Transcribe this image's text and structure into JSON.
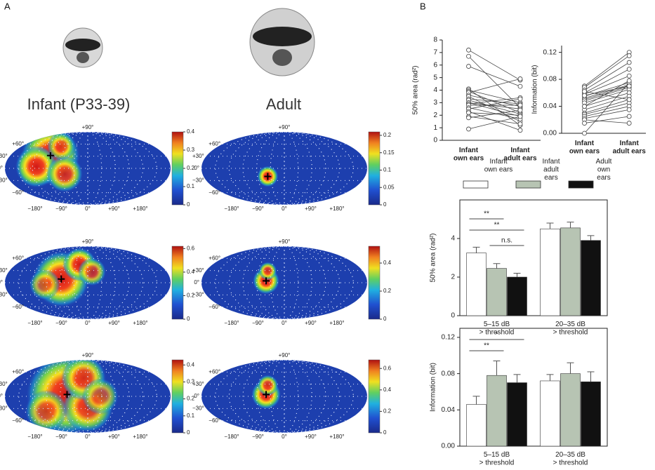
{
  "panel_labels": [
    "A",
    "B"
  ],
  "panel_a": {
    "columns": [
      "Infant (P33-39)",
      "Adult"
    ],
    "lat_labels": [
      "+90°",
      "+60°",
      "+30°",
      "0°",
      "−30°",
      "−60°"
    ],
    "lon_labels": [
      "−180°",
      "−90°",
      "0°",
      "+90°",
      "+180°"
    ],
    "colorbars": [
      {
        "lim": [
          0,
          0.4
        ],
        "ticks": [
          0,
          0.1,
          0.2,
          0.3,
          0.4
        ]
      },
      {
        "lim": [
          0,
          0.21
        ],
        "ticks": [
          0,
          0.05,
          0.1,
          0.15,
          0.2
        ]
      },
      {
        "lim": [
          0,
          0.62
        ],
        "ticks": [
          0,
          0.2,
          0.4,
          0.6
        ]
      },
      {
        "lim": [
          0,
          0.52
        ],
        "ticks": [
          0,
          0.2,
          0.4
        ]
      },
      {
        "lim": [
          0,
          0.43
        ],
        "ticks": [
          0,
          0.1,
          0.2,
          0.3,
          0.4
        ]
      },
      {
        "lim": [
          0,
          0.68
        ],
        "ticks": [
          0,
          0.2,
          0.4,
          0.6
        ]
      }
    ]
  },
  "chart_data": [
    {
      "type": "slope",
      "ylabel": "50% area (rad²)",
      "categories": [
        "Infant\nown ears",
        "Infant\nadult ears"
      ],
      "color": "#444444",
      "ylim": [
        0,
        8
      ],
      "yticks": [
        0,
        1,
        2,
        3,
        4,
        5,
        6,
        7,
        8
      ],
      "series": [
        {
          "values": [
            7.2,
            4.8
          ]
        },
        {
          "values": [
            6.7,
            2.6
          ]
        },
        {
          "values": [
            5.9,
            4.3
          ]
        },
        {
          "values": [
            4.1,
            1.2
          ]
        },
        {
          "values": [
            4.0,
            3.0
          ]
        },
        {
          "values": [
            3.9,
            2.2
          ]
        },
        {
          "values": [
            3.8,
            4.9
          ]
        },
        {
          "values": [
            3.6,
            2.7
          ]
        },
        {
          "values": [
            3.5,
            1.5
          ]
        },
        {
          "values": [
            3.3,
            2.9
          ]
        },
        {
          "values": [
            3.2,
            2.1
          ]
        },
        {
          "values": [
            3.0,
            2.5
          ]
        },
        {
          "values": [
            3.0,
            1.9
          ]
        },
        {
          "values": [
            2.9,
            3.4
          ]
        },
        {
          "values": [
            2.8,
            2.8
          ]
        },
        {
          "values": [
            2.6,
            1.7
          ]
        },
        {
          "values": [
            2.5,
            3.3
          ]
        },
        {
          "values": [
            2.3,
            0.8
          ]
        },
        {
          "values": [
            2.2,
            2.0
          ]
        },
        {
          "values": [
            1.9,
            1.3
          ]
        },
        {
          "values": [
            1.8,
            2.4
          ]
        },
        {
          "values": [
            0.9,
            1.9
          ]
        }
      ]
    },
    {
      "type": "slope",
      "ylabel": "Information (bit)",
      "categories": [
        "Infant\nown ears",
        "Infant\nadult ears"
      ],
      "color": "#444444",
      "ylim": [
        0,
        0.13
      ],
      "yticks": [
        {
          "value": 0,
          "label": "0.00"
        },
        0.04,
        0.08,
        0.12
      ],
      "series": [
        {
          "values": [
            0.07,
            0.12
          ]
        },
        {
          "values": [
            0.068,
            0.115
          ]
        },
        {
          "values": [
            0.064,
            0.105
          ]
        },
        {
          "values": [
            0.06,
            0.095
          ]
        },
        {
          "values": [
            0.058,
            0.085
          ]
        },
        {
          "values": [
            0.055,
            0.075
          ]
        },
        {
          "values": [
            0.052,
            0.072
          ]
        },
        {
          "values": [
            0.05,
            0.07
          ]
        },
        {
          "values": [
            0.048,
            0.068
          ]
        },
        {
          "values": [
            0.045,
            0.065
          ]
        },
        {
          "values": [
            0.04,
            0.06
          ]
        },
        {
          "values": [
            0.035,
            0.055
          ]
        },
        {
          "values": [
            0.03,
            0.05
          ]
        },
        {
          "values": [
            0.028,
            0.045
          ]
        },
        {
          "values": [
            0.025,
            0.04
          ]
        },
        {
          "values": [
            0.022,
            0.035
          ]
        },
        {
          "values": [
            0.02,
            0.015
          ]
        },
        {
          "values": [
            0.015,
            0.025
          ]
        },
        {
          "values": [
            0.0,
            0.075
          ]
        },
        {
          "values": [
            0.04,
            0.078
          ]
        },
        {
          "values": [
            0.062,
            0.05
          ]
        },
        {
          "values": [
            0.056,
            0.07
          ]
        }
      ]
    },
    {
      "type": "bar",
      "ylabel": "50% area (rad²)",
      "categories": [
        "5–15 dB\n> threshold",
        "20–35 dB\n> threshold"
      ],
      "ylim": [
        0,
        6
      ],
      "yticks": [
        0,
        2,
        4
      ],
      "legend": true,
      "annotations": [
        "**",
        "**",
        "n.s."
      ],
      "series": [
        {
          "name": "Infant\nown ears",
          "color": "#ffffff",
          "values": [
            3.25,
            4.5
          ],
          "errors": [
            0.3,
            0.3
          ]
        },
        {
          "name": "Infant\nadult\nears",
          "color": "#b7c4b3",
          "values": [
            2.45,
            4.55
          ],
          "errors": [
            0.25,
            0.3
          ]
        },
        {
          "name": "Adult\nown\nears",
          "color": "#111111",
          "values": [
            2.0,
            3.9
          ],
          "errors": [
            0.2,
            0.25
          ]
        }
      ]
    },
    {
      "type": "bar",
      "ylabel": "Information (bit)",
      "categories": [
        "5–15 dB\n> threshold",
        "20–35 dB\n> threshold"
      ],
      "ylim": [
        0,
        0.13
      ],
      "yticks": [
        {
          "value": 0,
          "label": "0.00"
        },
        0.04,
        0.08,
        0.12
      ],
      "legend": false,
      "annotations": [
        "*",
        "**"
      ],
      "series": [
        {
          "color": "#ffffff",
          "values": [
            0.046,
            0.072
          ],
          "errors": [
            0.009,
            0.007
          ]
        },
        {
          "color": "#b7c4b3",
          "values": [
            0.078,
            0.08
          ],
          "errors": [
            0.016,
            0.012
          ]
        },
        {
          "color": "#111111",
          "values": [
            0.07,
            0.071
          ],
          "errors": [
            0.009,
            0.011
          ]
        }
      ]
    }
  ]
}
